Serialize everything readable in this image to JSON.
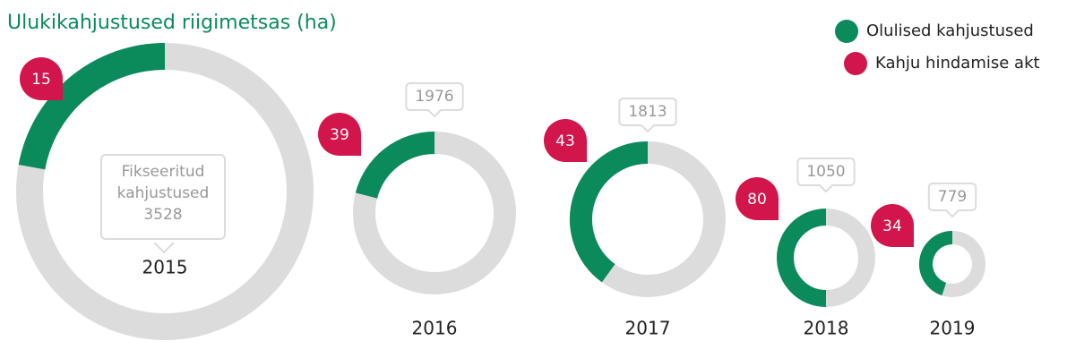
{
  "chart_data": {
    "type": "donut",
    "title": "Ulukikahjustused riigimetsas (ha)",
    "categories": [
      "2015",
      "2016",
      "2017",
      "2018",
      "2019"
    ],
    "total_label": "Fikseeritud kahjustused",
    "totals": [
      3528,
      1976,
      1813,
      1050,
      779
    ],
    "total_color": "#dcdcdc",
    "series": [
      {
        "name": "Olulised kahjustused",
        "color": "#0b8a5c",
        "values": [
          780,
          415,
          725,
          525,
          350
        ]
      },
      {
        "name": "Kahju hindamise akt",
        "color": "#d2154b",
        "values": [
          15,
          39,
          43,
          80,
          34
        ]
      }
    ]
  }
}
